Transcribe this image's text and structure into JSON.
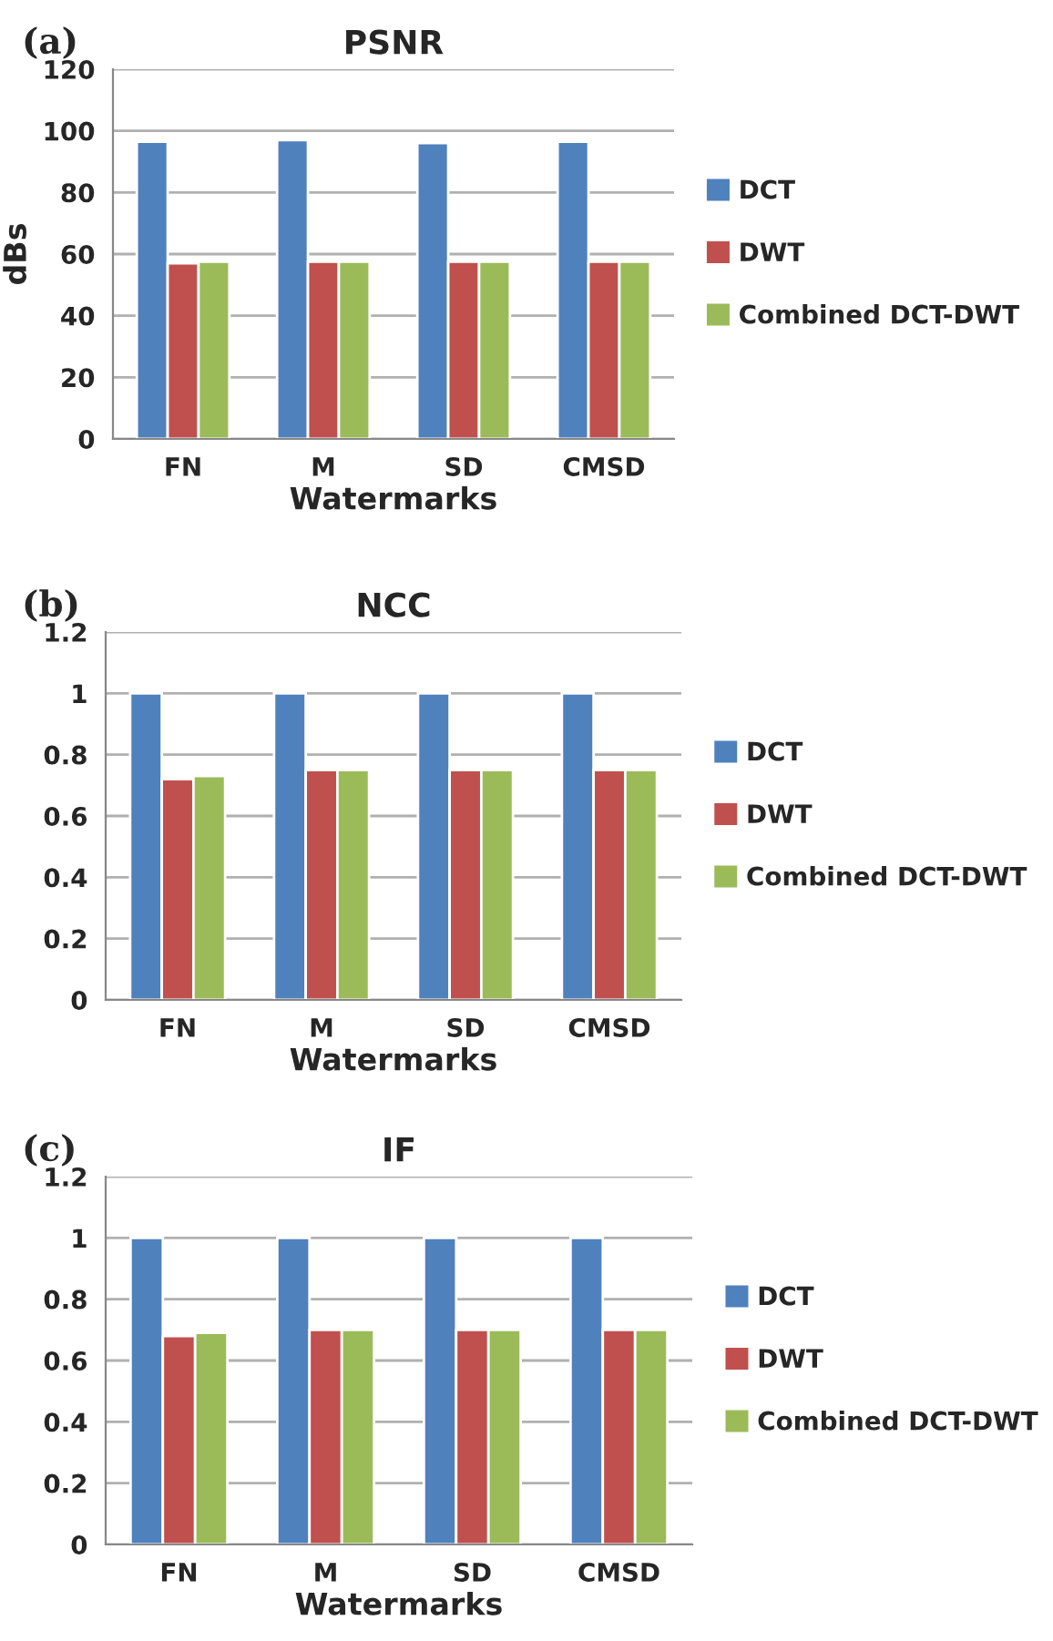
{
  "chart_data": [
    {
      "type": "bar",
      "title": "PSNR",
      "xlabel": "Watermarks",
      "ylabel": "dBs",
      "annotations": [
        "(a)"
      ],
      "categories": [
        "FN",
        "M",
        "SD",
        "CMSD"
      ],
      "series": [
        {
          "name": "DCT",
          "color": "#4f81bd",
          "values": [
            96.5,
            97,
            96,
            96.5
          ]
        },
        {
          "name": "DWT",
          "color": "#c0504d",
          "values": [
            57,
            57.5,
            57.5,
            57.5
          ]
        },
        {
          "name": "Combined DCT-DWT",
          "color": "#9bbb59",
          "values": [
            57.5,
            57.5,
            57.5,
            57.5
          ]
        }
      ],
      "ylim": [
        0,
        120
      ],
      "yticks": [
        0,
        20,
        40,
        60,
        80,
        100,
        120
      ],
      "grid": "y",
      "legend": "right"
    },
    {
      "type": "bar",
      "title": "NCC",
      "xlabel": "Watermarks",
      "annotations": [
        "(b)"
      ],
      "categories": [
        "FN",
        "M",
        "SD",
        "CMSD"
      ],
      "series": [
        {
          "name": "DCT",
          "color": "#4f81bd",
          "values": [
            1,
            1,
            1,
            1
          ]
        },
        {
          "name": "DWT",
          "color": "#c0504d",
          "values": [
            0.72,
            0.75,
            0.75,
            0.75
          ]
        },
        {
          "name": "Combined DCT-DWT",
          "color": "#9bbb59",
          "values": [
            0.73,
            0.75,
            0.75,
            0.75
          ]
        }
      ],
      "ylim": [
        0,
        1.2
      ],
      "yticks": [
        0,
        {
          "value": 0.2,
          "label": "0.2"
        },
        {
          "value": 0.4,
          "label": "0.4"
        },
        {
          "value": 0.6,
          "label": "0.6"
        },
        {
          "value": 0.8,
          "label": "0.8"
        },
        1,
        {
          "value": 1.2,
          "label": "1.2"
        }
      ],
      "grid": "y",
      "legend": "right"
    },
    {
      "type": "bar",
      "title": "IF",
      "xlabel": "Watermarks",
      "annotations": [
        "(c)"
      ],
      "categories": [
        "FN",
        "M",
        "SD",
        "CMSD"
      ],
      "series": [
        {
          "name": "DCT",
          "color": "#4f81bd",
          "values": [
            1,
            1,
            1,
            1
          ]
        },
        {
          "name": "DWT",
          "color": "#c0504d",
          "values": [
            0.68,
            0.7,
            0.7,
            0.7
          ]
        },
        {
          "name": "Combined DCT-DWT",
          "color": "#9bbb59",
          "values": [
            0.69,
            0.7,
            0.7,
            0.7
          ]
        }
      ],
      "ylim": [
        0,
        1.2
      ],
      "yticks": [
        0,
        {
          "value": 0.2,
          "label": "0.2"
        },
        {
          "value": 0.4,
          "label": "0.4"
        },
        {
          "value": 0.6,
          "label": "0.6"
        },
        {
          "value": 0.8,
          "label": "0.8"
        },
        1,
        {
          "value": 1.2,
          "label": "1.2"
        }
      ],
      "grid": "y",
      "legend": "right"
    }
  ]
}
